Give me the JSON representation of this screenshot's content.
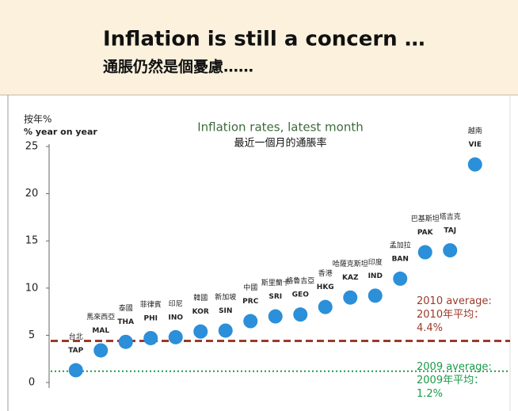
{
  "chart_data": {
    "type": "dot",
    "heading": "Inflation is still a concern …",
    "heading_zh": "通脹仍然是個憂慮……",
    "title": "Inflation rates, latest month",
    "subtitle": "最近一個月的通脹率",
    "y_label_zh": "按年%",
    "y_label": "% year on year",
    "categories": [
      "台北",
      "馬來西亞",
      "泰國",
      "菲律賓",
      "印尼",
      "韓國",
      "新加坡",
      "中國",
      "斯里蘭卡",
      "格魯吉亞",
      "香港",
      "哈薩克斯坦",
      "印度",
      "孟加拉",
      "巴基斯坦",
      "塔吉克",
      "越南"
    ],
    "codes": [
      "TAP",
      "MAL",
      "THA",
      "PHI",
      "INO",
      "KOR",
      "SIN",
      "PRC",
      "SRI",
      "GEO",
      "HKG",
      "KAZ",
      "IND",
      "BAN",
      "PAK",
      "TAJ",
      "VIE"
    ],
    "values": [
      1.3,
      3.4,
      4.3,
      4.7,
      4.8,
      5.4,
      5.5,
      6.5,
      7.0,
      7.2,
      8.0,
      9.0,
      9.2,
      11.0,
      13.8,
      14.0,
      23.1
    ],
    "color": "#2b8fd9",
    "ylim": [
      0,
      25
    ],
    "yticks": [
      0,
      5,
      10,
      15,
      20,
      25
    ],
    "reference_lines": [
      {
        "value": 4.4,
        "color": "#9b3a2a",
        "style": "dashed",
        "label": [
          "2010 average:",
          "2010年平均：",
          "4.4%"
        ]
      },
      {
        "value": 1.2,
        "color": "#1a9a4a",
        "style": "dotted",
        "label": [
          "2009 average:",
          "2009年平均：",
          "1.2%"
        ]
      }
    ]
  }
}
